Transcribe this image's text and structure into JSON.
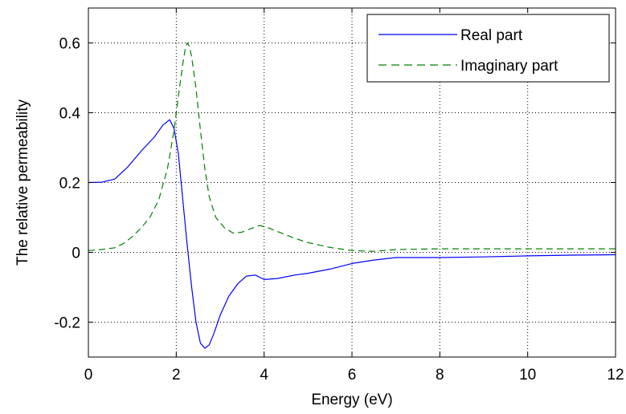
{
  "chart_data": {
    "type": "line",
    "xlabel": "Energy (eV)",
    "ylabel": "The relative permeability",
    "xlim": [
      0,
      12
    ],
    "ylim": [
      -0.3,
      0.7
    ],
    "xticks": [
      0,
      2,
      4,
      6,
      8,
      10,
      12
    ],
    "xtick_labels": [
      "0",
      "2",
      "4",
      "6",
      "8",
      "10",
      "12"
    ],
    "yticks": [
      -0.2,
      0,
      0.2,
      0.4,
      0.6
    ],
    "ytick_labels": [
      "-0.2",
      "0",
      "0.2",
      "0.4",
      "0.6"
    ],
    "grid": true,
    "legend_position": "top-right",
    "series": [
      {
        "name": "Real part",
        "color": "#0000ff",
        "line_style": "solid",
        "x": [
          0,
          0.3,
          0.6,
          0.9,
          1.2,
          1.5,
          1.7,
          1.85,
          1.95,
          2.05,
          2.15,
          2.25,
          2.35,
          2.45,
          2.55,
          2.65,
          2.75,
          2.85,
          3.0,
          3.2,
          3.4,
          3.6,
          3.8,
          4.0,
          4.3,
          4.7,
          5.0,
          5.5,
          6.0,
          6.5,
          7.0,
          8.0,
          9.0,
          10.0,
          11.0,
          12.0
        ],
        "y": [
          0.2,
          0.201,
          0.21,
          0.245,
          0.29,
          0.33,
          0.365,
          0.38,
          0.355,
          0.28,
          0.15,
          0.02,
          -0.1,
          -0.2,
          -0.26,
          -0.275,
          -0.265,
          -0.235,
          -0.18,
          -0.125,
          -0.09,
          -0.068,
          -0.065,
          -0.078,
          -0.075,
          -0.065,
          -0.06,
          -0.048,
          -0.032,
          -0.022,
          -0.015,
          -0.015,
          -0.013,
          -0.01,
          -0.008,
          -0.007
        ]
      },
      {
        "name": "Imaginary part",
        "color": "#008000",
        "line_style": "dashed",
        "x": [
          0,
          0.3,
          0.6,
          0.8,
          1.0,
          1.2,
          1.4,
          1.6,
          1.8,
          1.95,
          2.05,
          2.15,
          2.2,
          2.25,
          2.3,
          2.35,
          2.45,
          2.55,
          2.65,
          2.75,
          2.9,
          3.1,
          3.3,
          3.5,
          3.7,
          3.9,
          4.1,
          4.4,
          4.7,
          5.0,
          5.5,
          6.0,
          6.5,
          7.0,
          8.0,
          10.0,
          12.0
        ],
        "y": [
          0.005,
          0.008,
          0.013,
          0.025,
          0.045,
          0.07,
          0.1,
          0.15,
          0.24,
          0.35,
          0.45,
          0.54,
          0.58,
          0.6,
          0.59,
          0.56,
          0.47,
          0.35,
          0.24,
          0.16,
          0.1,
          0.07,
          0.055,
          0.058,
          0.068,
          0.077,
          0.07,
          0.055,
          0.04,
          0.028,
          0.014,
          0.005,
          0.003,
          0.008,
          0.01,
          0.01,
          0.01
        ]
      }
    ]
  }
}
